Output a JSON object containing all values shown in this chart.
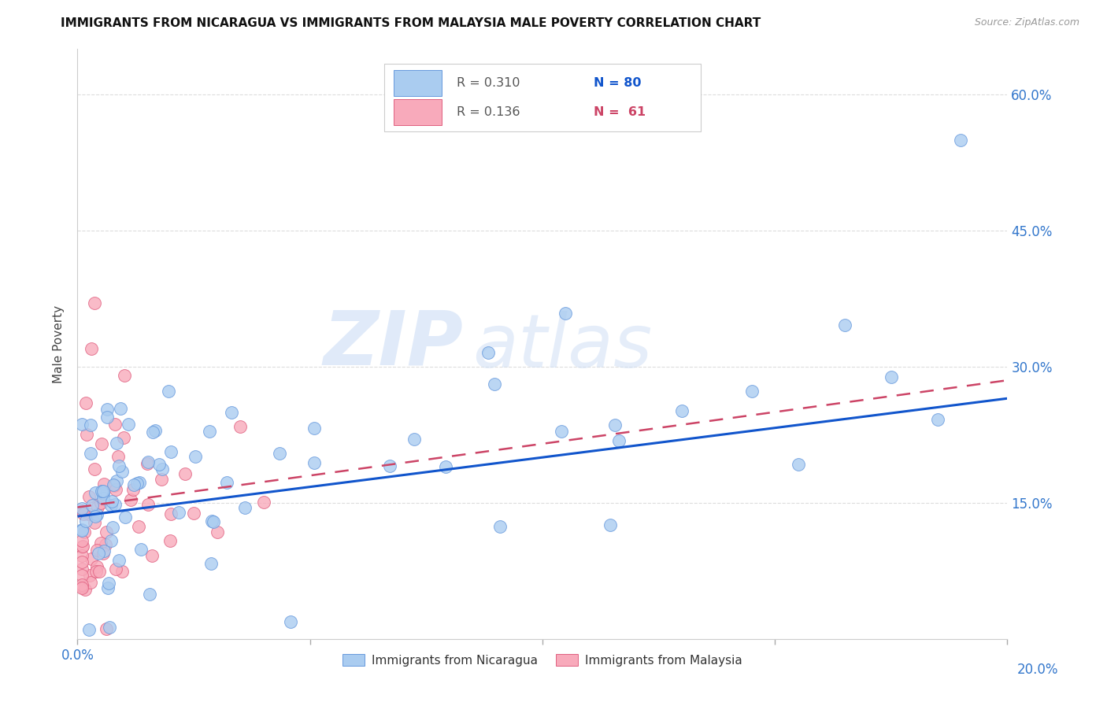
{
  "title": "IMMIGRANTS FROM NICARAGUA VS IMMIGRANTS FROM MALAYSIA MALE POVERTY CORRELATION CHART",
  "source": "Source: ZipAtlas.com",
  "ylabel": "Male Poverty",
  "xlim": [
    0.0,
    0.2
  ],
  "ylim": [
    0.0,
    0.65
  ],
  "ytick_labels_right": [
    "60.0%",
    "45.0%",
    "30.0%",
    "15.0%"
  ],
  "ytick_vals_right": [
    0.6,
    0.45,
    0.3,
    0.15
  ],
  "watermark_zip": "ZIP",
  "watermark_atlas": "atlas",
  "legend_r1": "R = 0.310",
  "legend_n1": "N = 80",
  "legend_r2": "R = 0.136",
  "legend_n2": "N =  61",
  "series1_color": "#aaccf0",
  "series1_edge": "#6699dd",
  "series2_color": "#f8aabb",
  "series2_edge": "#e06080",
  "line1_color": "#1155cc",
  "line2_color": "#cc4466",
  "background_color": "#ffffff",
  "grid_color": "#dddddd",
  "title_color": "#111111",
  "axis_label_color": "#444444",
  "right_tick_color": "#3377cc",
  "bottom_tick_color": "#3377cc",
  "r_color": "#555555",
  "n1_color": "#1155cc",
  "n2_color": "#cc4466"
}
